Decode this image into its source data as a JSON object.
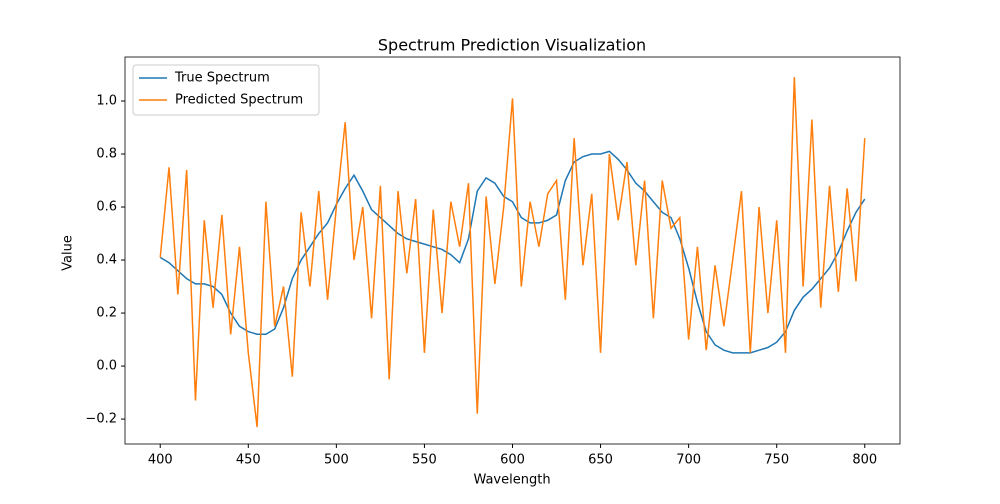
{
  "chart_data": {
    "type": "line",
    "title": "Spectrum Prediction Visualization",
    "xlabel": "Wavelength",
    "ylabel": "Value",
    "x": [
      400,
      405,
      410,
      415,
      420,
      425,
      430,
      435,
      440,
      445,
      450,
      455,
      460,
      465,
      470,
      475,
      480,
      485,
      490,
      495,
      500,
      505,
      510,
      515,
      520,
      525,
      530,
      535,
      540,
      545,
      550,
      555,
      560,
      565,
      570,
      575,
      580,
      585,
      590,
      595,
      600,
      605,
      610,
      615,
      620,
      625,
      630,
      635,
      640,
      645,
      650,
      655,
      660,
      665,
      670,
      675,
      680,
      685,
      690,
      695,
      700,
      705,
      710,
      715,
      720,
      725,
      730,
      735,
      740,
      745,
      750,
      755,
      760,
      765,
      770,
      775,
      780,
      785,
      790,
      795,
      800
    ],
    "series": [
      {
        "name": "True Spectrum",
        "color": "#1f77b4",
        "values": [
          0.41,
          0.39,
          0.36,
          0.33,
          0.31,
          0.31,
          0.3,
          0.27,
          0.2,
          0.15,
          0.13,
          0.12,
          0.12,
          0.14,
          0.22,
          0.33,
          0.4,
          0.45,
          0.5,
          0.54,
          0.61,
          0.67,
          0.72,
          0.66,
          0.59,
          0.56,
          0.53,
          0.5,
          0.48,
          0.47,
          0.46,
          0.45,
          0.44,
          0.42,
          0.39,
          0.48,
          0.66,
          0.71,
          0.69,
          0.64,
          0.62,
          0.56,
          0.54,
          0.54,
          0.55,
          0.57,
          0.7,
          0.77,
          0.79,
          0.8,
          0.8,
          0.81,
          0.78,
          0.74,
          0.69,
          0.66,
          0.62,
          0.58,
          0.56,
          0.48,
          0.37,
          0.24,
          0.13,
          0.08,
          0.06,
          0.05,
          0.05,
          0.05,
          0.06,
          0.07,
          0.09,
          0.13,
          0.21,
          0.26,
          0.29,
          0.33,
          0.37,
          0.43,
          0.51,
          0.58,
          0.63
        ]
      },
      {
        "name": "Predicted Spectrum",
        "color": "#ff7f0e",
        "values": [
          0.41,
          0.75,
          0.27,
          0.74,
          -0.13,
          0.55,
          0.22,
          0.57,
          0.12,
          0.45,
          0.05,
          -0.23,
          0.62,
          0.15,
          0.3,
          -0.04,
          0.58,
          0.3,
          0.66,
          0.25,
          0.6,
          0.92,
          0.4,
          0.6,
          0.18,
          0.68,
          -0.05,
          0.66,
          0.35,
          0.63,
          0.05,
          0.59,
          0.2,
          0.62,
          0.45,
          0.69,
          -0.18,
          0.64,
          0.31,
          0.6,
          1.01,
          0.3,
          0.62,
          0.45,
          0.65,
          0.7,
          0.25,
          0.86,
          0.38,
          0.65,
          0.05,
          0.8,
          0.55,
          0.77,
          0.38,
          0.7,
          0.18,
          0.7,
          0.52,
          0.56,
          0.1,
          0.45,
          0.06,
          0.38,
          0.15,
          0.4,
          0.66,
          0.05,
          0.6,
          0.2,
          0.55,
          0.05,
          1.09,
          0.3,
          0.93,
          0.22,
          0.68,
          0.28,
          0.67,
          0.32,
          0.86
        ]
      }
    ],
    "xlim": [
      380,
      820
    ],
    "ylim": [
      -0.294,
      1.166
    ],
    "xticks": [
      400,
      450,
      500,
      550,
      600,
      650,
      700,
      750,
      800
    ],
    "yticks": [
      {
        "value": -0.2,
        "label": "−0.2"
      },
      {
        "value": 0,
        "label": "0.0"
      },
      0.2,
      0.4,
      0.6,
      0.8,
      {
        "value": 1,
        "label": "1.0"
      }
    ],
    "legend": "upper left"
  }
}
